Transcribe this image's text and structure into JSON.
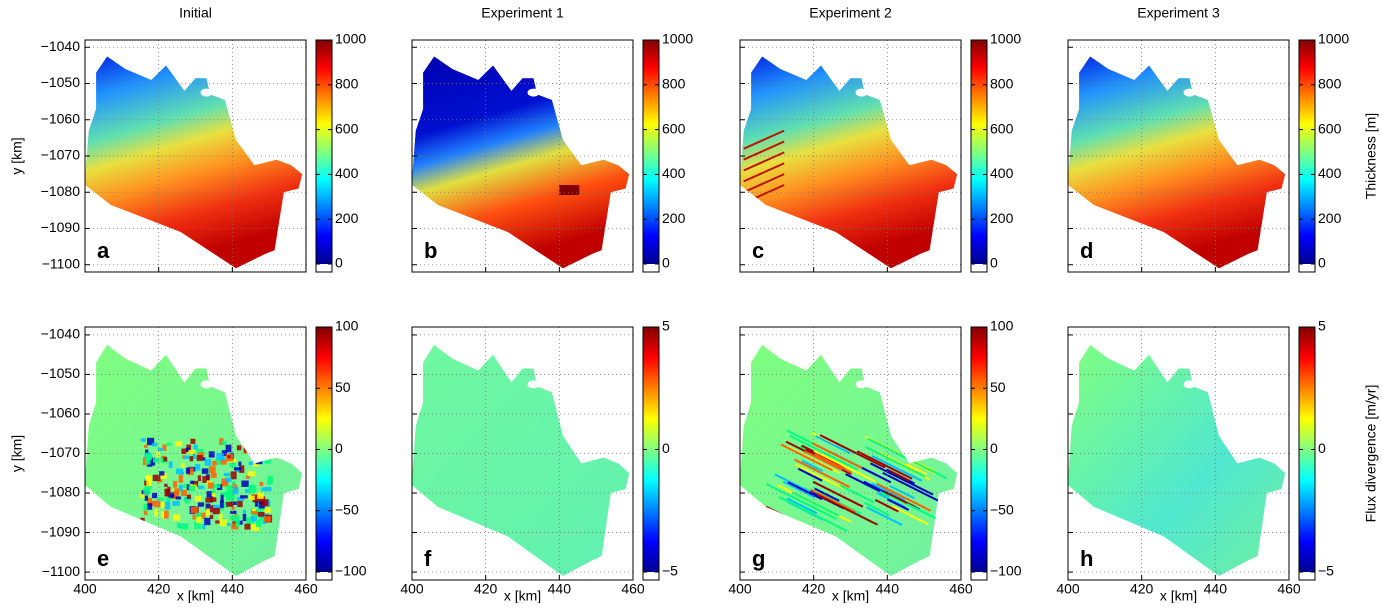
{
  "chart_data": {
    "type": "map",
    "columns": [
      "Initial",
      "Experiment 1",
      "Experiment 2",
      "Experiment 3"
    ],
    "xlabel": "x [km]",
    "ylabel": "y [km]",
    "xlim": [
      400,
      460
    ],
    "ylim": [
      -1102,
      -1038
    ],
    "xticks": [
      400,
      420,
      440,
      460
    ],
    "yticks": [
      {
        "value": -1040,
        "label": "−1040"
      },
      {
        "value": -1050,
        "label": "−1050"
      },
      {
        "value": -1060,
        "label": "−1060"
      },
      {
        "value": -1070,
        "label": "−1070"
      },
      {
        "value": -1080,
        "label": "−1080"
      },
      {
        "value": -1090,
        "label": "−1090"
      },
      {
        "value": -1100,
        "label": "−1100"
      }
    ],
    "grid": true,
    "rows": [
      {
        "colorbar_label": "Thickness [m]",
        "panels": [
          {
            "letter": "a",
            "clim": [
              0,
              1000
            ],
            "cticks": [
              0,
              200,
              400,
              600,
              800,
              1000
            ]
          },
          {
            "letter": "b",
            "clim": [
              0,
              1000
            ],
            "cticks": [
              0,
              200,
              400,
              600,
              800,
              1000
            ]
          },
          {
            "letter": "c",
            "clim": [
              0,
              1000
            ],
            "cticks": [
              0,
              200,
              400,
              600,
              800,
              1000
            ]
          },
          {
            "letter": "d",
            "clim": [
              0,
              1000
            ],
            "cticks": [
              0,
              200,
              400,
              600,
              800,
              1000
            ]
          }
        ]
      },
      {
        "colorbar_label": "Flux divergence [m/yr]",
        "panels": [
          {
            "letter": "e",
            "clim": [
              -100,
              100
            ],
            "cticks": [
              {
                "value": -100,
                "label": "−100"
              },
              {
                "value": -50,
                "label": "−50"
              },
              0,
              50,
              100
            ]
          },
          {
            "letter": "f",
            "clim": [
              -5,
              5
            ],
            "cticks": [
              {
                "value": -5,
                "label": "−5"
              },
              0,
              5
            ]
          },
          {
            "letter": "g",
            "clim": [
              -100,
              100
            ],
            "cticks": [
              {
                "value": -100,
                "label": "−100"
              },
              {
                "value": -50,
                "label": "−50"
              },
              0,
              50,
              100
            ]
          },
          {
            "letter": "h",
            "clim": [
              -5,
              5
            ],
            "cticks": [
              {
                "value": -5,
                "label": "−5"
              },
              0,
              5
            ]
          }
        ]
      }
    ]
  }
}
